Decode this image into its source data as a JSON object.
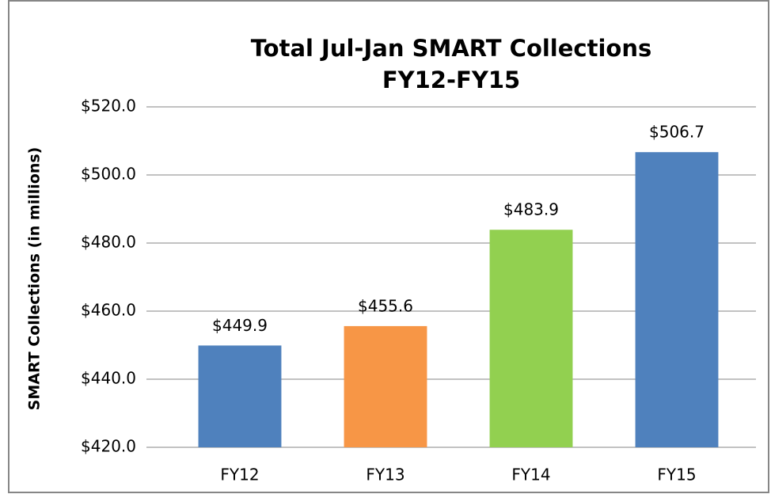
{
  "chart_data": {
    "type": "bar",
    "title": [
      "Total Jul-Jan SMART Collections",
      "FY12-FY15"
    ],
    "y_label": "SMART Collections (in millions)",
    "categories": [
      "FY12",
      "FY13",
      "FY14",
      "FY15"
    ],
    "values": [
      449.9,
      455.6,
      483.9,
      506.7
    ],
    "value_labels": [
      "$449.9",
      "$455.6",
      "$483.9",
      "$506.7"
    ],
    "colors": [
      "#4f81bd",
      "#f79646",
      "#92d050",
      "#4f81bd"
    ],
    "ylim": [
      420,
      520
    ],
    "yticks": [
      {
        "value": 420,
        "label": "$420.0"
      },
      {
        "value": 440,
        "label": "$440.0"
      },
      {
        "value": 460,
        "label": "$460.0"
      },
      {
        "value": 480,
        "label": "$480.0"
      },
      {
        "value": 500,
        "label": "$500.0"
      },
      {
        "value": 520,
        "label": "$520.0"
      }
    ],
    "grid": true
  }
}
